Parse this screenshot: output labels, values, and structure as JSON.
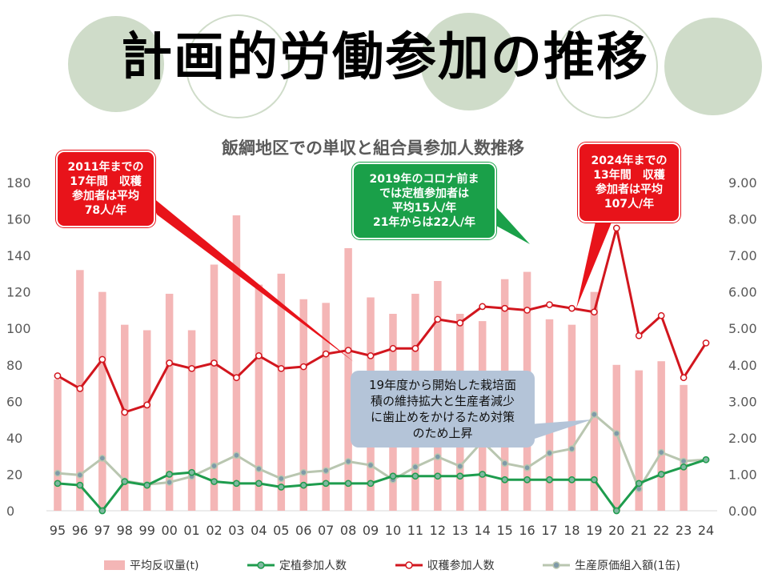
{
  "title": "計画的労働参加の推移",
  "chart_data": {
    "type": "bar",
    "title": "飯綱地区での単収と組合員参加人数推移",
    "categories": [
      "95",
      "96",
      "97",
      "98",
      "99",
      "00",
      "01",
      "02",
      "03",
      "04",
      "05",
      "06",
      "07",
      "08",
      "09",
      "10",
      "11",
      "12",
      "13",
      "14",
      "15",
      "16",
      "17",
      "18",
      "19",
      "20",
      "21",
      "22",
      "23",
      "24"
    ],
    "left_axis": {
      "ylim": [
        0,
        180
      ],
      "ticks": [
        "0",
        "20",
        "40",
        "60",
        "80",
        "100",
        "120",
        "140",
        "160",
        "180"
      ]
    },
    "right_axis": {
      "ylim": [
        0,
        9
      ],
      "ticks": [
        "0.00",
        "1.00",
        "2.00",
        "3.00",
        "4.00",
        "5.00",
        "6.00",
        "7.00",
        "8.00",
        "9.00"
      ]
    },
    "series": [
      {
        "name": "平均反収量(t)",
        "kind": "bar",
        "axis": "left",
        "color": "#f4b6b6",
        "values": [
          72,
          132,
          120,
          102,
          99,
          119,
          99,
          135,
          162,
          124,
          130,
          116,
          114,
          144,
          117,
          108,
          119,
          126,
          108,
          104,
          127,
          131,
          105,
          102,
          120,
          80,
          77,
          82,
          69,
          null
        ]
      },
      {
        "name": "定植参加人数",
        "kind": "line",
        "axis": "left",
        "color": "#1e9c4d",
        "values": [
          15,
          14,
          0,
          16,
          14,
          20,
          21,
          16,
          15,
          15,
          13,
          14,
          15,
          15,
          15,
          19,
          19,
          19,
          19,
          20,
          17,
          17,
          17,
          17,
          17,
          0,
          15,
          20,
          24,
          28
        ]
      },
      {
        "name": "収穫参加人数",
        "kind": "line",
        "axis": "left",
        "color": "#d2161e",
        "values": [
          74,
          67,
          83,
          54,
          58,
          81,
          78,
          81,
          73,
          85,
          78,
          79,
          86,
          88,
          85,
          89,
          89,
          105,
          103,
          112,
          111,
          110,
          113,
          111,
          109,
          155,
          96,
          107,
          73,
          92
        ]
      },
      {
        "name": "生産原価組入額(1缶)",
        "kind": "line",
        "axis": "right",
        "color": "#b9c6b0",
        "values": [
          1.03,
          0.98,
          1.44,
          0.82,
          0.72,
          0.78,
          0.94,
          1.23,
          1.52,
          1.15,
          0.88,
          1.05,
          1.1,
          1.35,
          1.25,
          0.85,
          1.2,
          1.48,
          1.22,
          1.9,
          1.3,
          1.18,
          1.58,
          1.7,
          2.64,
          2.12,
          0.6,
          1.6,
          1.36,
          1.4
        ]
      }
    ]
  },
  "callouts": {
    "c2011": "2011年までの\n17年間　収穫\n参加者は平均\n78人/年",
    "c2019": "2019年のコロナ前ま\nでは定植参加者は\n平均15人/年\n21年からは22人/年",
    "c2024": "2024年までの\n13年間　収穫\n参加者は平均\n107人/年",
    "c19": "19年度から開始した栽培面\n積の維持拡大と生産者減少\nに歯止めをかけるため対策\nのため上昇"
  }
}
